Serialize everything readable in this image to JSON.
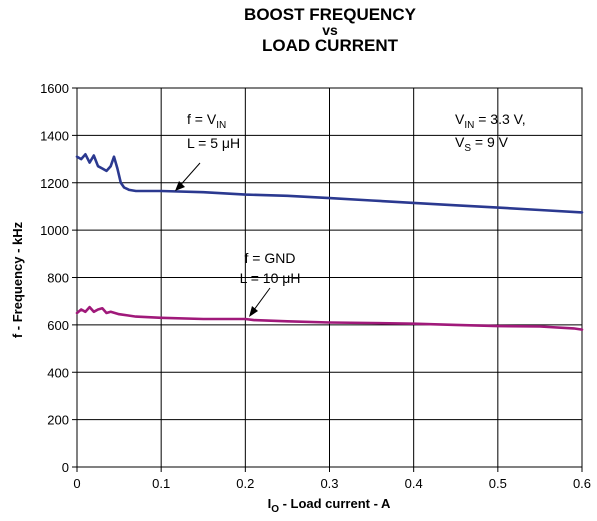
{
  "chart_data": {
    "type": "line",
    "title_lines": [
      "BOOST FREQUENCY",
      "vs",
      "LOAD CURRENT"
    ],
    "xlabel_main": "I",
    "xlabel_sub": "O",
    "xlabel_rest": " - Load current - A",
    "ylabel": "f - Frequency - kHz",
    "xlim": [
      0,
      0.6
    ],
    "ylim": [
      0,
      1600
    ],
    "x_ticks": [
      0,
      0.1,
      0.2,
      0.3,
      0.4,
      0.5,
      0.6
    ],
    "x_tick_labels": [
      "0",
      "0.1",
      "0.2",
      "0.3",
      "0.4",
      "0.5",
      "0.6"
    ],
    "y_ticks": [
      0,
      200,
      400,
      600,
      800,
      1000,
      1200,
      1400,
      1600
    ],
    "y_tick_labels": [
      "0",
      "200",
      "400",
      "600",
      "800",
      "1000",
      "1200",
      "1400",
      "1600"
    ],
    "grid": true,
    "series": [
      {
        "key": "vin",
        "color": "#2b3990",
        "x": [
          0,
          0.005,
          0.01,
          0.015,
          0.02,
          0.025,
          0.03,
          0.035,
          0.04,
          0.044,
          0.048,
          0.052,
          0.056,
          0.062,
          0.07,
          0.1,
          0.15,
          0.2,
          0.25,
          0.3,
          0.35,
          0.4,
          0.45,
          0.5,
          0.55,
          0.6
        ],
        "values": [
          1310,
          1300,
          1320,
          1285,
          1315,
          1270,
          1260,
          1250,
          1270,
          1310,
          1260,
          1200,
          1180,
          1170,
          1165,
          1165,
          1160,
          1150,
          1145,
          1135,
          1125,
          1115,
          1105,
          1095,
          1085,
          1075
        ]
      },
      {
        "key": "gnd",
        "color": "#a0197a",
        "x": [
          0,
          0.005,
          0.01,
          0.015,
          0.02,
          0.025,
          0.03,
          0.035,
          0.04,
          0.05,
          0.06,
          0.07,
          0.1,
          0.15,
          0.2,
          0.21,
          0.25,
          0.3,
          0.35,
          0.4,
          0.45,
          0.5,
          0.55,
          0.59,
          0.6
        ],
        "values": [
          650,
          665,
          655,
          675,
          655,
          665,
          670,
          650,
          655,
          645,
          640,
          635,
          630,
          625,
          625,
          620,
          615,
          610,
          608,
          605,
          600,
          595,
          593,
          585,
          580
        ]
      }
    ],
    "annotations": {
      "vin": {
        "line1_prefix": "f = V",
        "line1_sub": "IN",
        "line2": "L = 5 μH"
      },
      "gnd": {
        "line1": "f = GND",
        "line2": "L = 10 μH"
      },
      "conditions": {
        "line1_prefix": "V",
        "line1_sub": "IN",
        "line1_rest": " = 3.3 V,",
        "line2_prefix": "V",
        "line2_sub": "S",
        "line2_rest": " = 9 V"
      }
    }
  }
}
